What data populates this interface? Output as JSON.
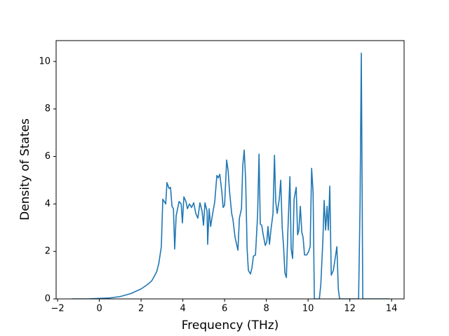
{
  "chart_data": {
    "type": "line",
    "x_label": "Frequency (THz)",
    "y_label": "Density of States",
    "x": [
      -1.33,
      -0.5,
      0,
      0.5,
      1.0,
      1.5,
      2.0,
      2.3,
      2.5,
      2.6,
      2.75,
      2.85,
      2.97,
      3.04,
      3.18,
      3.24,
      3.34,
      3.41,
      3.48,
      3.55,
      3.61,
      3.68,
      3.82,
      3.92,
      3.98,
      4.05,
      4.15,
      4.22,
      4.32,
      4.42,
      4.52,
      4.62,
      4.72,
      4.82,
      4.92,
      4.99,
      5.06,
      5.16,
      5.19,
      5.26,
      5.33,
      5.43,
      5.53,
      5.63,
      5.7,
      5.77,
      5.87,
      5.93,
      6.0,
      6.1,
      6.17,
      6.24,
      6.34,
      6.4,
      6.5,
      6.64,
      6.71,
      6.81,
      6.87,
      6.94,
      7.01,
      7.08,
      7.14,
      7.24,
      7.31,
      7.38,
      7.48,
      7.58,
      7.65,
      7.71,
      7.78,
      7.85,
      7.95,
      8.02,
      8.08,
      8.15,
      8.22,
      8.32,
      8.39,
      8.45,
      8.52,
      8.62,
      8.69,
      8.76,
      8.82,
      8.89,
      8.96,
      9.03,
      9.13,
      9.19,
      9.26,
      9.33,
      9.43,
      9.5,
      9.56,
      9.63,
      9.7,
      9.76,
      9.83,
      9.93,
      10.03,
      10.1,
      10.17,
      10.24,
      10.3,
      10.44,
      10.54,
      10.61,
      10.71,
      10.77,
      10.84,
      10.91,
      10.97,
      11.04,
      11.11,
      11.21,
      11.28,
      11.38,
      11.45,
      11.51,
      12.42,
      12.49,
      12.55,
      12.62,
      13.9
    ],
    "values": [
      0,
      0,
      0.02,
      0.04,
      0.1,
      0.22,
      0.42,
      0.6,
      0.75,
      0.9,
      1.15,
      1.5,
      2.2,
      4.2,
      4.0,
      4.9,
      4.65,
      4.7,
      3.9,
      3.8,
      2.1,
      3.5,
      4.1,
      4.0,
      3.2,
      4.3,
      4.1,
      3.8,
      4.0,
      3.85,
      4.05,
      3.6,
      3.4,
      4.05,
      3.7,
      3.1,
      4.05,
      3.7,
      2.3,
      3.8,
      3.05,
      3.6,
      4.1,
      5.2,
      5.1,
      5.25,
      4.5,
      3.85,
      3.95,
      5.85,
      5.4,
      4.5,
      3.6,
      3.35,
      2.6,
      2.05,
      3.4,
      3.8,
      5.6,
      6.27,
      5.0,
      2.1,
      1.2,
      1.05,
      1.3,
      1.8,
      1.85,
      3.5,
      6.1,
      3.15,
      3.1,
      2.7,
      2.25,
      2.4,
      3.05,
      2.3,
      2.9,
      3.6,
      6.05,
      4.1,
      3.6,
      4.2,
      5.0,
      3.0,
      2.3,
      1.1,
      0.9,
      2.8,
      5.15,
      2.1,
      1.7,
      4.2,
      4.7,
      2.7,
      2.9,
      3.9,
      2.8,
      2.6,
      1.85,
      1.85,
      2.0,
      2.2,
      5.5,
      4.5,
      0,
      0,
      0,
      0.6,
      2.5,
      4.15,
      2.9,
      3.9,
      2.9,
      4.75,
      1.0,
      1.2,
      1.6,
      2.2,
      0.4,
      0,
      0,
      4.0,
      10.35,
      0,
      0
    ],
    "color": "#1f77b4",
    "xlim": [
      -2.07,
      14.6
    ],
    "xticks": [
      {
        "value": -2,
        "label": "−2"
      },
      0,
      2,
      4,
      6,
      8,
      10,
      12,
      14
    ],
    "ylim": [
      0,
      10.88
    ],
    "yticks": [
      0,
      2,
      4,
      6,
      8,
      10
    ],
    "grid": false
  }
}
